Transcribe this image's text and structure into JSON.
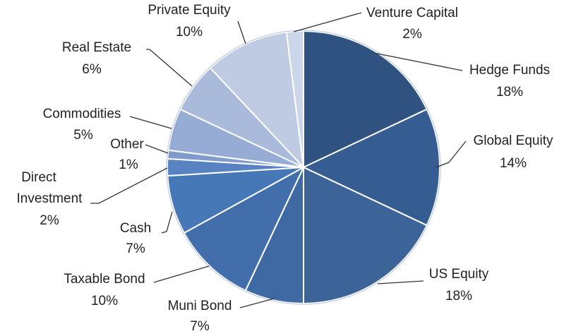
{
  "chart_data": {
    "type": "pie",
    "title": "",
    "start": "top",
    "direction": "clockwise",
    "legend": "none",
    "data_labels": "outside with leader lines",
    "slices": [
      {
        "label": "Hedge Funds",
        "value": 18,
        "pct_label": "18%",
        "color": "#2F5281"
      },
      {
        "label": "Global Equity",
        "value": 14,
        "pct_label": "14%",
        "color": "#365D91"
      },
      {
        "label": "US Equity",
        "value": 18,
        "pct_label": "18%",
        "color": "#3C6499"
      },
      {
        "label": "Muni Bond",
        "value": 7,
        "pct_label": "7%",
        "color": "#3F69A3"
      },
      {
        "label": "Taxable Bond",
        "value": 10,
        "pct_label": "10%",
        "color": "#426FAC"
      },
      {
        "label": "Cash",
        "value": 7,
        "pct_label": "7%",
        "color": "#4677B7"
      },
      {
        "label": "Direct Investment",
        "value": 2,
        "pct_label": "2%",
        "color": "#5882C2"
      },
      {
        "label": "Other",
        "value": 1,
        "pct_label": "1%",
        "color": "#7F9BCB"
      },
      {
        "label": "Commodities",
        "value": 5,
        "pct_label": "5%",
        "color": "#97ACD4"
      },
      {
        "label": "Real Estate",
        "value": 6,
        "pct_label": "6%",
        "color": "#A9BADB"
      },
      {
        "label": "Private Equity",
        "value": 10,
        "pct_label": "10%",
        "color": "#BECBE3"
      },
      {
        "label": "Venture Capital",
        "value": 2,
        "pct_label": "2%",
        "color": "#CCD6EA"
      }
    ]
  }
}
